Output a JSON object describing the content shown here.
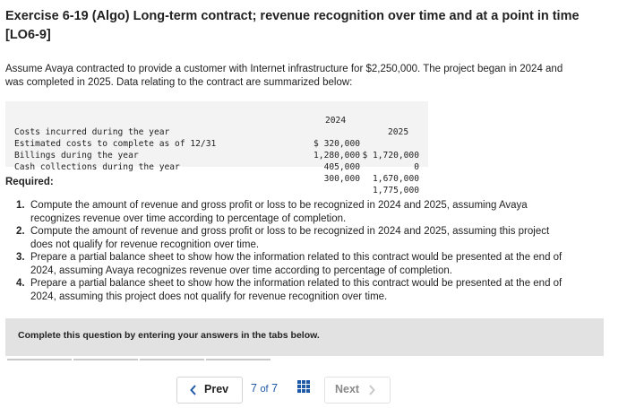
{
  "header": {
    "title_line1": "Exercise 6-19 (Algo) Long-term contract; revenue recognition over time and at a point in time",
    "title_line2": "[LO6-9]"
  },
  "intro": {
    "line1": "Assume Avaya contracted to provide a customer with Internet infrastructure for $2,250,000. The project began in 2024 and",
    "line2": "was completed in 2025. Data relating to the contract are summarized below:"
  },
  "contract_table": {
    "col1_header": "2024",
    "col2_header": "2025",
    "rows": [
      {
        "label": "Costs incurred during the year",
        "c1": "$ 320,000",
        "c2": "$ 1,720,000"
      },
      {
        "label": "Estimated costs to complete as of 12/31",
        "c1": "1,280,000",
        "c2": "0"
      },
      {
        "label": "Billings during the year",
        "c1": "405,000",
        "c2": "1,670,000"
      },
      {
        "label": "Cash collections during the year",
        "c1": "300,000",
        "c2": "1,775,000"
      }
    ]
  },
  "required": {
    "heading": "Required:",
    "items": [
      {
        "num": "1.",
        "line1": "Compute the amount of revenue and gross profit or loss to be recognized in 2024 and 2025, assuming Avaya",
        "line2": "recognizes revenue over time according to percentage of completion."
      },
      {
        "num": "2.",
        "line1": "Compute the amount of revenue and gross profit or loss to be recognized in 2024 and 2025, assuming this project",
        "line2": "does not qualify for revenue recognition over time."
      },
      {
        "num": "3.",
        "line1": "Prepare a partial balance sheet to show how the information related to this contract would be presented at the end of",
        "line2": "2024, assuming Avaya recognizes revenue over time according to percentage of completion."
      },
      {
        "num": "4.",
        "line1": "Prepare a partial balance sheet to show how the information related to this contract would be presented at the end of",
        "line2": "2024, assuming this project does not qualify for revenue recognition over time."
      }
    ]
  },
  "banner": {
    "text": "Complete this question by entering your answers in the tabs below."
  },
  "navigation": {
    "prev_label": "Prev",
    "prev_icon": "chevron-left-icon",
    "current_page": "7",
    "of_label": "of",
    "total_pages": "7",
    "grid_icon": "grid-icon",
    "next_label": "Next",
    "next_icon": "chevron-right-icon"
  },
  "colors": {
    "accent_blue": "#1e5aa8",
    "table_bg": "#f3f3f3",
    "banner_bg": "#e2e2e2",
    "disabled_text": "#8a8a8a"
  }
}
